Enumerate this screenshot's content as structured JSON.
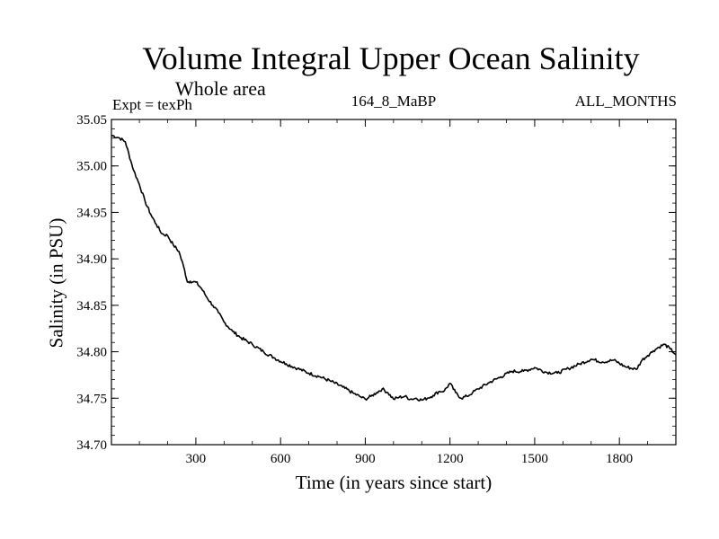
{
  "chart_data": {
    "type": "line",
    "title": "Volume Integral Upper Ocean Salinity",
    "subtitle": "Whole area",
    "left_label": "Expt = texPh",
    "center_label": "164_8_MaBP",
    "right_label": "ALL_MONTHS",
    "xlabel": "Time (in years since start)",
    "ylabel": "Salinity (in PSU)",
    "xlim": [
      1,
      2000
    ],
    "ylim": [
      34.7,
      35.05
    ],
    "xticks": [
      300,
      600,
      900,
      1200,
      1500,
      1800
    ],
    "xtick_labels": [
      "300",
      "600",
      "900",
      "1200",
      "1500",
      "1800"
    ],
    "yticks": [
      34.7,
      34.75,
      34.8,
      34.85,
      34.9,
      34.95,
      35.0,
      35.05
    ],
    "ytick_labels": [
      "34.70",
      "34.75",
      "34.80",
      "34.85",
      "34.90",
      "34.95",
      "35.00",
      "35.05"
    ],
    "grid": false,
    "series": [
      {
        "name": "Salinity",
        "color": "#000000",
        "x": [
          1,
          30,
          50,
          70,
          80,
          100,
          120,
          140,
          160,
          180,
          200,
          220,
          240,
          260,
          270,
          280,
          290,
          300,
          320,
          340,
          360,
          380,
          400,
          430,
          460,
          500,
          540,
          580,
          620,
          660,
          700,
          740,
          780,
          820,
          860,
          880,
          900,
          920,
          940,
          960,
          980,
          1000,
          1020,
          1040,
          1060,
          1080,
          1100,
          1120,
          1140,
          1160,
          1180,
          1200,
          1220,
          1240,
          1260,
          1280,
          1300,
          1340,
          1380,
          1420,
          1460,
          1500,
          1540,
          1580,
          1620,
          1660,
          1700,
          1740,
          1780,
          1820,
          1860,
          1880,
          1900,
          1920,
          1940,
          1960,
          1980,
          2000
        ],
        "values": [
          35.033,
          35.03,
          35.026,
          35.005,
          34.995,
          34.98,
          34.962,
          34.948,
          34.937,
          34.927,
          34.925,
          34.915,
          34.908,
          34.888,
          34.875,
          34.876,
          34.875,
          34.875,
          34.868,
          34.858,
          34.85,
          34.842,
          34.832,
          34.822,
          34.815,
          34.808,
          34.8,
          34.793,
          34.787,
          34.782,
          34.777,
          34.773,
          34.768,
          34.762,
          34.755,
          34.752,
          34.749,
          34.752,
          34.756,
          34.76,
          34.756,
          34.749,
          34.751,
          34.752,
          34.749,
          34.75,
          34.748,
          34.75,
          34.753,
          34.757,
          34.758,
          34.766,
          34.756,
          34.75,
          34.752,
          34.756,
          34.76,
          34.767,
          34.773,
          34.779,
          34.779,
          34.783,
          34.778,
          34.777,
          34.782,
          34.787,
          34.792,
          34.789,
          34.791,
          34.784,
          34.781,
          34.791,
          34.796,
          34.801,
          34.805,
          34.808,
          34.803,
          34.797
        ]
      }
    ]
  }
}
